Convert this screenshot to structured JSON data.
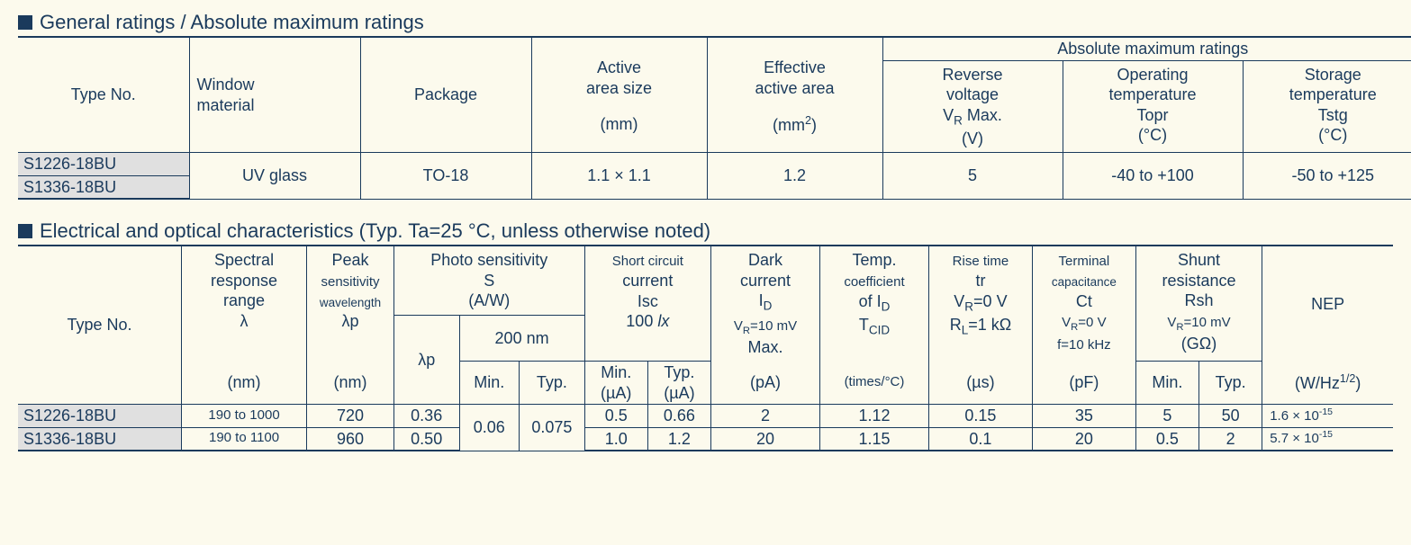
{
  "section1": {
    "title": "General ratings / Absolute maximum ratings",
    "headers": {
      "type_no": "Type No.",
      "window": "Window\nmaterial",
      "package": "Package",
      "active_area": "Active\narea size",
      "active_area_unit": "(mm)",
      "eff_area": "Effective\nactive area",
      "eff_area_unit_html": "(mm<sup>2</sup>)",
      "amr": "Absolute maximum ratings",
      "vr": "Reverse\nvoltage\nV",
      "vr_sub": "R",
      "vr_tail": " Max.",
      "vr_unit": "(V)",
      "topr": "Operating\ntemperature\nTopr",
      "topr_unit": "(°C)",
      "tstg": "Storage\ntemperature\nTstg",
      "tstg_unit": "(°C)"
    },
    "rows": {
      "r1_type": "S1226-18BU",
      "r2_type": "S1336-18BU",
      "window": "UV glass",
      "package": "TO-18",
      "active_area": "1.1 × 1.1",
      "eff_area": "1.2",
      "vr": "5",
      "topr": "-40 to +100",
      "tstg": "-50 to +125"
    }
  },
  "section2": {
    "title": "Electrical and optical characteristics (Typ. Ta=25 °C, unless otherwise noted)",
    "headers": {
      "type_no": "Type No.",
      "spectral": "Spectral\nresponse\nrange",
      "lambda": "λ",
      "spectral_unit": "(nm)",
      "peak": "Peak",
      "peak_l2": "sensitivity",
      "peak_l3": "wavelength",
      "lambdap": "λp",
      "peak_unit": "(nm)",
      "photo": "Photo sensitivity\nS\n(A/W)",
      "photo_lp": "λp",
      "photo_200": "200 nm",
      "min": "Min.",
      "typ": "Typ.",
      "isc1": "Short circuit",
      "isc2": "current",
      "isc3": "Isc",
      "isc4_html": "100 <i>lx</i>",
      "isc_unit": "(µA)",
      "dark1": "Dark",
      "dark2": "current",
      "dark3": "I",
      "dark3_sub": "D",
      "dark4_html": "V<sub>R</sub>=10 mV",
      "dark5": "Max.",
      "dark_unit": "(pA)",
      "tcid1": "Temp.",
      "tcid2": "coefficient",
      "tcid3_html": "of I<sub>D</sub>",
      "tcid4_html": "T<sub>CID</sub>",
      "tcid_unit": "(times/°C)",
      "rise1": "Rise time",
      "rise2": "tr",
      "rise3_html": "V<sub>R</sub>=0 V",
      "rise4_html": "R<sub>L</sub>=1 kΩ",
      "rise_unit": "(µs)",
      "ct1": "Terminal",
      "ct2": "capacitance",
      "ct3": "Ct",
      "ct4_html": "V<sub>R</sub>=0 V",
      "ct5": "f=10 kHz",
      "ct_unit": "(pF)",
      "rsh1": "Shunt",
      "rsh2": "resistance",
      "rsh3": "Rsh",
      "rsh4_html": "V<sub>R</sub>=10 mV",
      "rsh_unit": "(GΩ)",
      "nep": "NEP",
      "nep_unit_html": "(W/Hz<sup>1/2</sup>)"
    },
    "rows": [
      {
        "type": "S1226-18BU",
        "spectral": "190 to 1000",
        "lp": "720",
        "s_lp": "0.36",
        "isc_min": "0.5",
        "isc_typ": "0.66",
        "id": "2",
        "tcid": "1.12",
        "tr": "0.15",
        "ct": "35",
        "rsh_min": "5",
        "rsh_typ": "50",
        "nep_html": "1.6 × 10<sup>-15</sup>"
      },
      {
        "type": "S1336-18BU",
        "spectral": "190 to 1100",
        "lp": "960",
        "s_lp": "0.50",
        "isc_min": "1.0",
        "isc_typ": "1.2",
        "id": "20",
        "tcid": "1.15",
        "tr": "0.1",
        "ct": "20",
        "rsh_min": "0.5",
        "rsh_typ": "2",
        "nep_html": "5.7 × 10<sup>-15</sup>"
      }
    ],
    "shared": {
      "s200_min": "0.06",
      "s200_typ": "0.075"
    }
  }
}
